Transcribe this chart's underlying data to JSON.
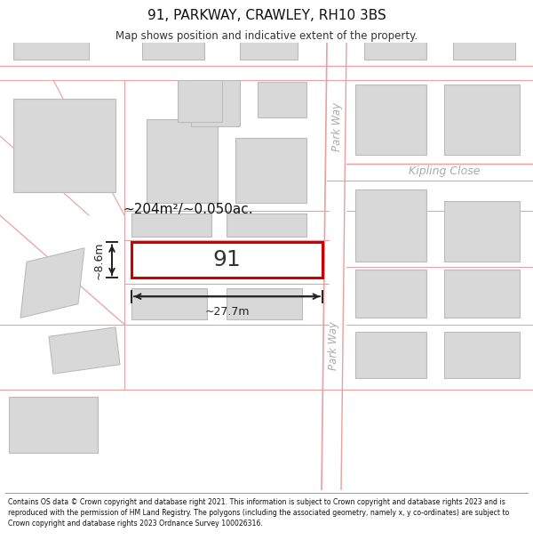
{
  "title": "91, PARKWAY, CRAWLEY, RH10 3BS",
  "subtitle": "Map shows position and indicative extent of the property.",
  "footer": "Contains OS data © Crown copyright and database right 2021. This information is subject to Crown copyright and database rights 2023 and is reproduced with the permission of HM Land Registry. The polygons (including the associated geometry, namely x, y co-ordinates) are subject to Crown copyright and database rights 2023 Ordnance Survey 100026316.",
  "bg_color": "#ffffff",
  "map_bg": "#f5f5f5",
  "road_color": "#e8a0a0",
  "building_color": "#d8d8d8",
  "building_edge": "#bbbbbb",
  "highlight_color": "#cc0000",
  "highlight_fill": "#ffffff",
  "dim_color": "#222222",
  "street_label_color": "#aaaaaa",
  "area_text": "~204m²/~0.050ac.",
  "label_91": "91",
  "dim_width": "~27.7m",
  "dim_height": "~8.6m",
  "street_parkway_upper": "Park Way",
  "street_kipling": "Kipling Close",
  "street_parkway_lower": "Park Way"
}
